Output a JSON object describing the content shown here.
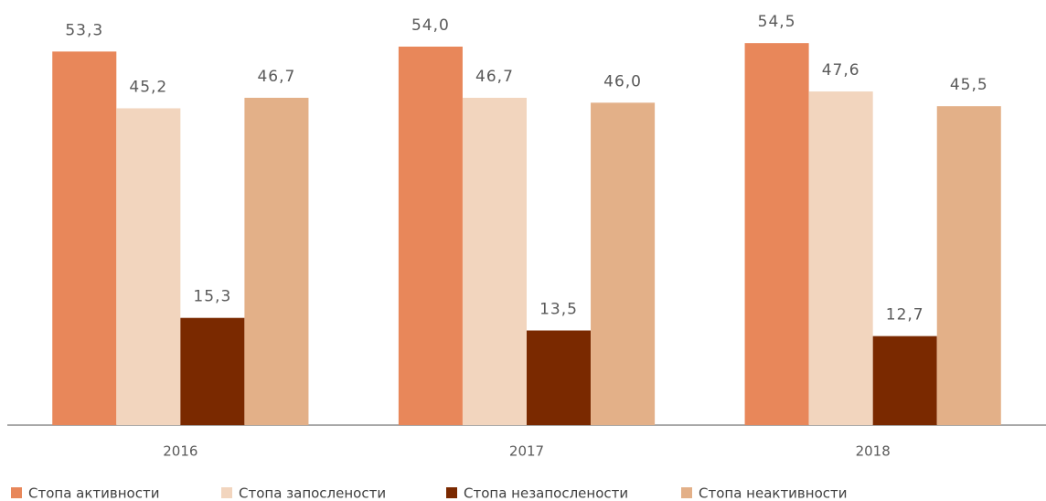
{
  "chart_data": {
    "type": "bar",
    "categories": [
      "2016",
      "2017",
      "2018"
    ],
    "series": [
      {
        "name": "Стопа активности",
        "color": "#e8875a",
        "values": [
          53.3,
          54.0,
          54.5
        ],
        "value_labels": [
          "53,3",
          "54,0",
          "54,5"
        ]
      },
      {
        "name": "Стопа запослености",
        "color": "#f2d5be",
        "values": [
          45.2,
          46.7,
          47.6
        ],
        "value_labels": [
          "45,2",
          "46,7",
          "47,6"
        ]
      },
      {
        "name": "Стопа незапослености",
        "color": "#7a2900",
        "values": [
          15.3,
          13.5,
          12.7
        ],
        "value_labels": [
          "15,3",
          "13,5",
          "12,7"
        ]
      },
      {
        "name": "Стопа неактивности",
        "color": "#e3b088",
        "values": [
          46.7,
          46.0,
          45.5
        ],
        "value_labels": [
          "46,7",
          "46,0",
          "45,5"
        ]
      }
    ],
    "ylim": [
      0,
      60
    ],
    "legend": "bottom"
  }
}
